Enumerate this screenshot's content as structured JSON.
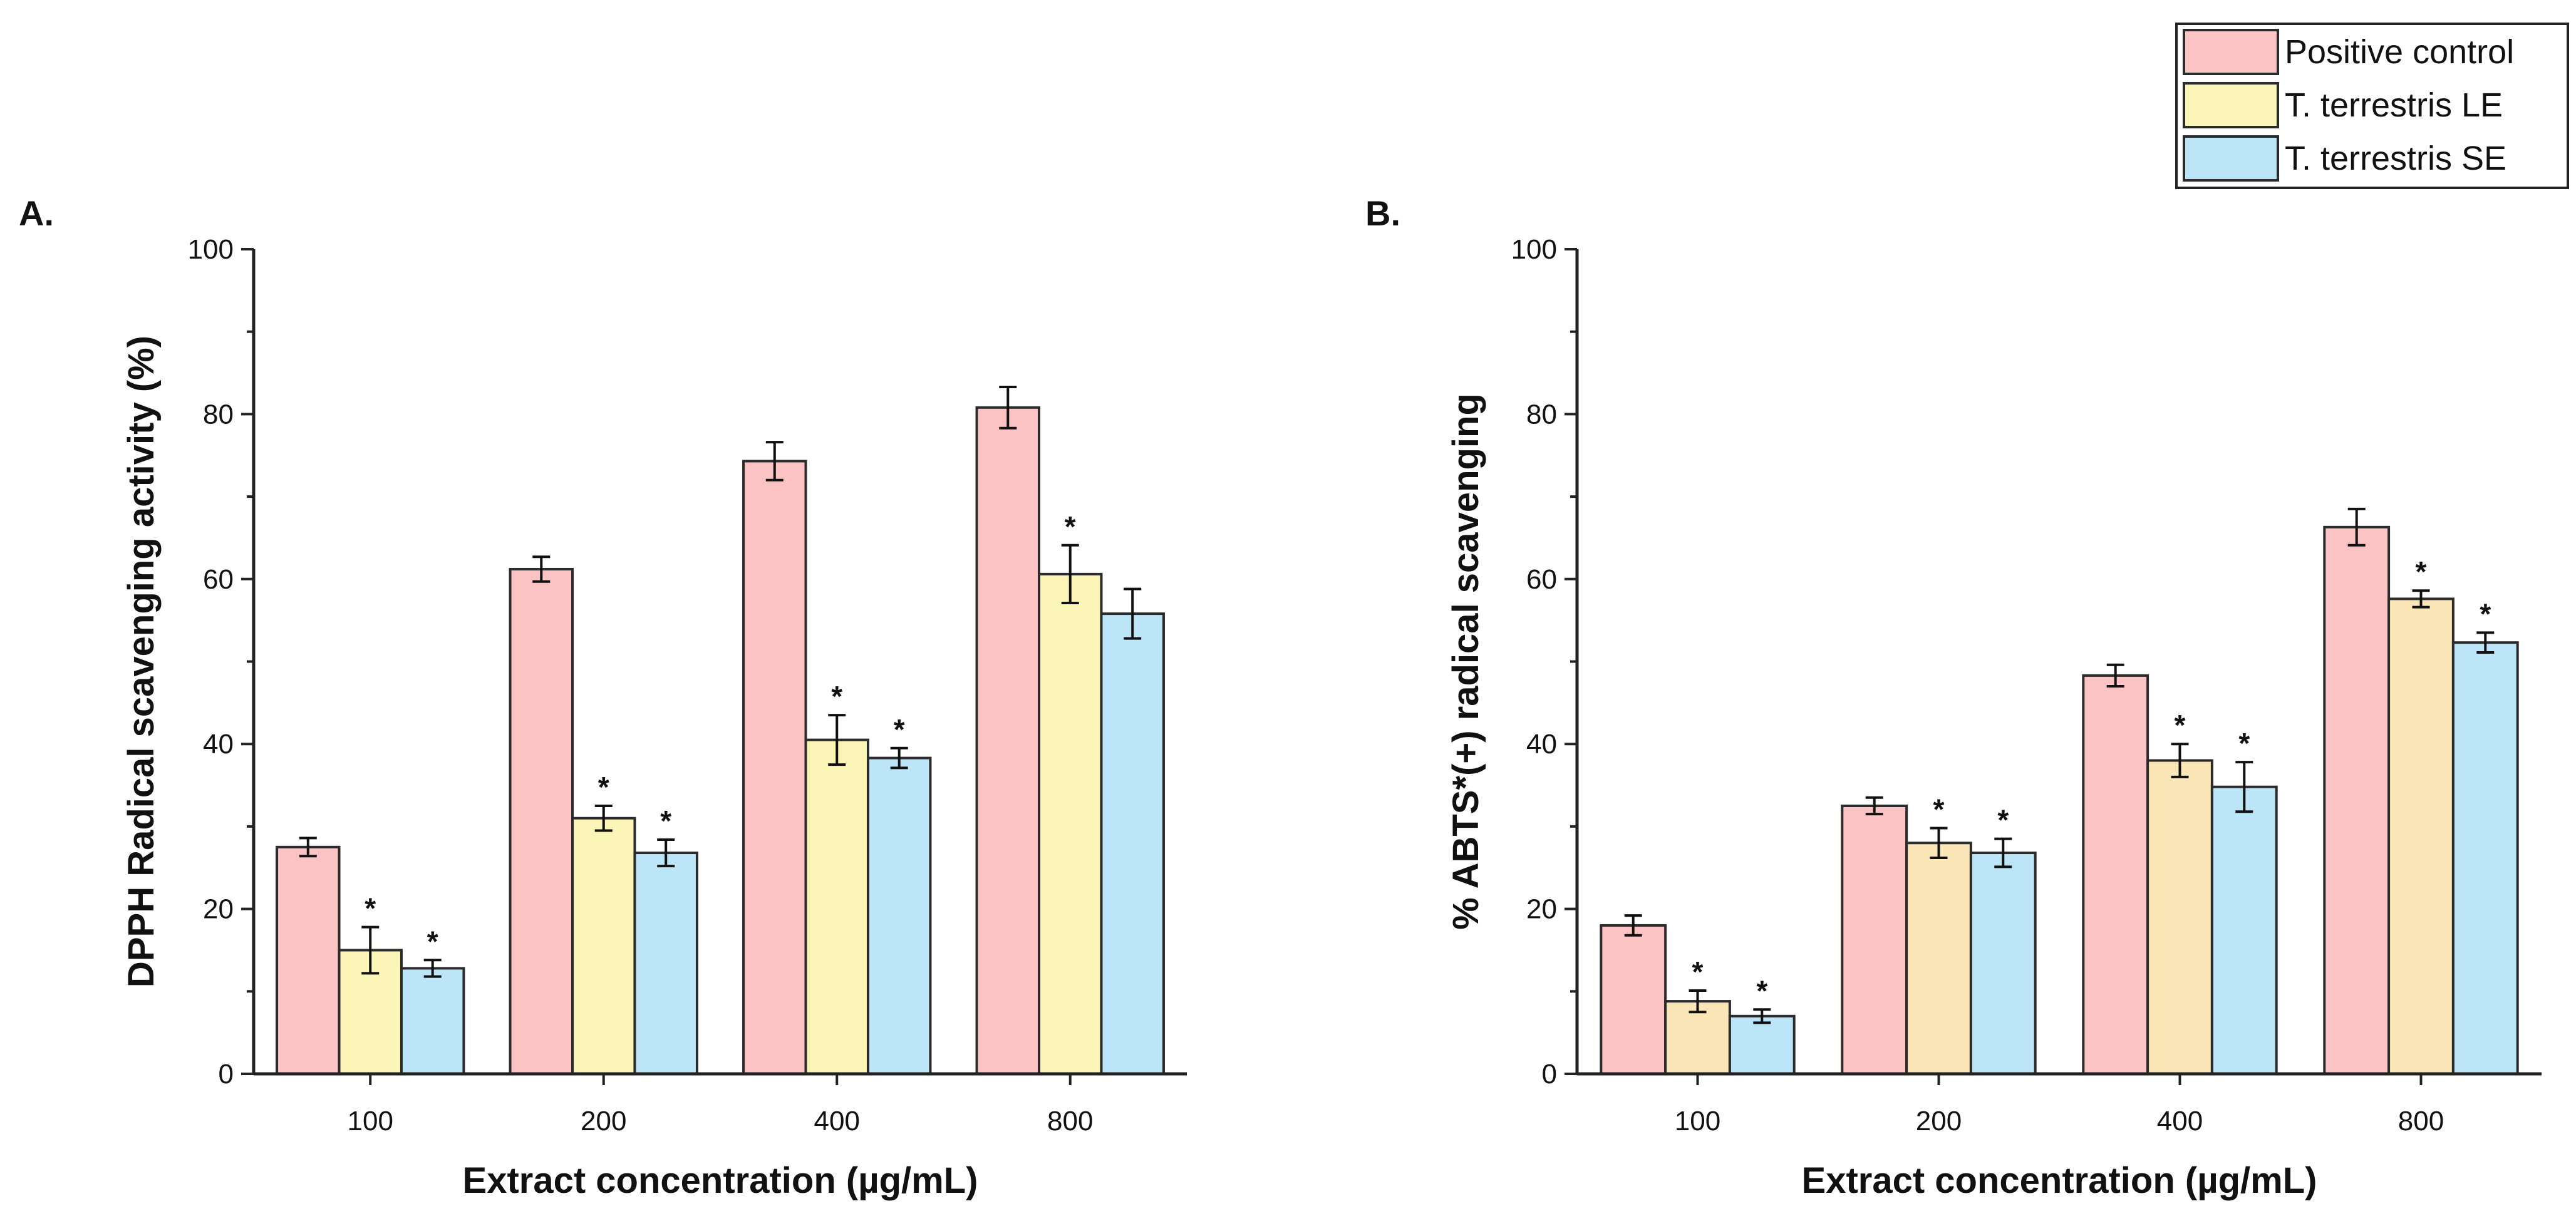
{
  "legend": {
    "entries": [
      {
        "label": "Positive control",
        "color": "#fcc3c4"
      },
      {
        "label": "T. terrestris LE",
        "color": "#fbf5b8"
      },
      {
        "label": "T. terrestris SE",
        "color": "#bde5f8"
      }
    ]
  },
  "chart_data": [
    {
      "panel_label": "A.",
      "type": "bar",
      "xlabel": "Extract concentration (µg/mL)",
      "ylabel": "DPPH Radical scavenging activity (%)",
      "ylim": [
        0,
        100
      ],
      "yticks": [
        0,
        20,
        40,
        60,
        80,
        100
      ],
      "categories": [
        "100",
        "200",
        "400",
        "800"
      ],
      "series": [
        {
          "name": "Positive control",
          "color": "#fcc3c4",
          "values": [
            27.5,
            61.2,
            74.3,
            80.8
          ],
          "errors": [
            1.1,
            1.5,
            2.3,
            2.5
          ],
          "significant": [
            false,
            false,
            false,
            false
          ]
        },
        {
          "name": "T. terrestris LE",
          "color": "#fbf5b8",
          "values": [
            15.0,
            31.0,
            40.5,
            60.6
          ],
          "errors": [
            2.8,
            1.5,
            3.0,
            3.5
          ],
          "significant": [
            true,
            true,
            true,
            true
          ]
        },
        {
          "name": "T. terrestris SE",
          "color": "#bde5f8",
          "values": [
            12.8,
            26.8,
            38.3,
            55.8
          ],
          "errors": [
            1.0,
            1.6,
            1.2,
            3.0
          ],
          "significant": [
            true,
            true,
            true,
            false
          ]
        }
      ],
      "significance_marker": "*"
    },
    {
      "panel_label": "B.",
      "type": "bar",
      "xlabel": "Extract concentration (µg/mL)",
      "ylabel": "% ABTS*(+) radical scavenging",
      "ylim": [
        0,
        100
      ],
      "yticks": [
        0,
        20,
        40,
        60,
        80,
        100
      ],
      "categories": [
        "100",
        "200",
        "400",
        "800"
      ],
      "series": [
        {
          "name": "Positive control",
          "color": "#fcc3c4",
          "values": [
            18.0,
            32.5,
            48.3,
            66.3
          ],
          "errors": [
            1.2,
            1.0,
            1.3,
            2.2
          ],
          "significant": [
            false,
            false,
            false,
            false
          ]
        },
        {
          "name": "T. terrestris LE",
          "color": "#fbe6b8",
          "values": [
            8.8,
            28.0,
            38.0,
            57.6
          ],
          "errors": [
            1.3,
            1.8,
            2.0,
            1.0
          ],
          "significant": [
            true,
            true,
            true,
            true
          ]
        },
        {
          "name": "T. terrestris SE",
          "color": "#bde5f8",
          "values": [
            7.0,
            26.8,
            34.8,
            52.3
          ],
          "errors": [
            0.8,
            1.7,
            3.0,
            1.2
          ],
          "significant": [
            true,
            true,
            true,
            true
          ]
        }
      ],
      "significance_marker": "*"
    }
  ]
}
